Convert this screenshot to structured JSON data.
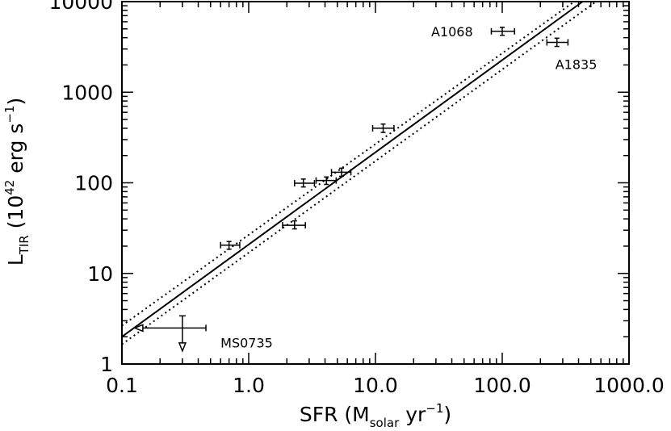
{
  "chart_data": {
    "type": "scatter",
    "title": "",
    "xscale": "log",
    "yscale": "log",
    "xlim": [
      0.1,
      1000
    ],
    "ylim": [
      1,
      10000
    ],
    "x_ticks": [
      0.1,
      1,
      10,
      100,
      1000
    ],
    "x_tick_labels": [
      "0.1",
      "1.0",
      "10.0",
      "100.0",
      "1000.0"
    ],
    "y_ticks": [
      1,
      10,
      100,
      1000,
      10000
    ],
    "y_tick_labels": [
      "1",
      "10",
      "100",
      "1000",
      "10000"
    ],
    "xlabel": {
      "main": "SFR (M",
      "sub": "solar",
      "rest": " yr",
      "sup": "−1",
      "end": ")"
    },
    "ylabel": {
      "main": "L",
      "sub": "TIR",
      "rest": " (10",
      "sup1": "42",
      "mid": " erg s",
      "sup2": "−1",
      "end": ")"
    },
    "grid": false,
    "points": [
      {
        "x": 0.7,
        "xerr": [
          0.6,
          0.85
        ],
        "y": 20.5,
        "yerr": [
          18.5,
          22.5
        ],
        "label": ""
      },
      {
        "x": 2.3,
        "xerr": [
          1.85,
          2.8
        ],
        "y": 34,
        "yerr": [
          31,
          38
        ],
        "label": ""
      },
      {
        "x": 2.7,
        "xerr": [
          2.3,
          3.3
        ],
        "y": 99,
        "yerr": [
          90,
          110
        ],
        "label": ""
      },
      {
        "x": 4.1,
        "xerr": [
          3.4,
          4.9
        ],
        "y": 106,
        "yerr": [
          96,
          116
        ],
        "label": ""
      },
      {
        "x": 5.4,
        "xerr": [
          4.5,
          6.4
        ],
        "y": 131,
        "yerr": [
          118,
          145
        ],
        "label": ""
      },
      {
        "x": 11.5,
        "xerr": [
          9.5,
          14
        ],
        "y": 400,
        "yerr": [
          360,
          445
        ],
        "label": ""
      },
      {
        "x": 100,
        "xerr": [
          82,
          125
        ],
        "y": 4700,
        "yerr": [
          4250,
          5200
        ],
        "label": "A1068"
      },
      {
        "x": 270,
        "xerr": [
          225,
          330
        ],
        "y": 3550,
        "yerr": [
          3200,
          3950
        ],
        "label": "A1835"
      }
    ],
    "limits": [
      {
        "x": 0.3,
        "y": 2.5,
        "x_lower": 0.13,
        "x_upper": 0.46,
        "y_upper": 3.4,
        "y_lower": 1.45,
        "label": "MS0735"
      }
    ],
    "lines": [
      {
        "name": "",
        "style": "solid",
        "points": [
          [
            0.1,
            2.0
          ],
          [
            430,
            10000
          ]
        ]
      },
      {
        "name": "",
        "style": "dotted",
        "points": [
          [
            0.1,
            2.65
          ],
          [
            370,
            10000
          ]
        ]
      },
      {
        "name": "",
        "style": "dotted",
        "points": [
          [
            0.1,
            1.65
          ],
          [
            550,
            10000
          ]
        ]
      }
    ]
  }
}
